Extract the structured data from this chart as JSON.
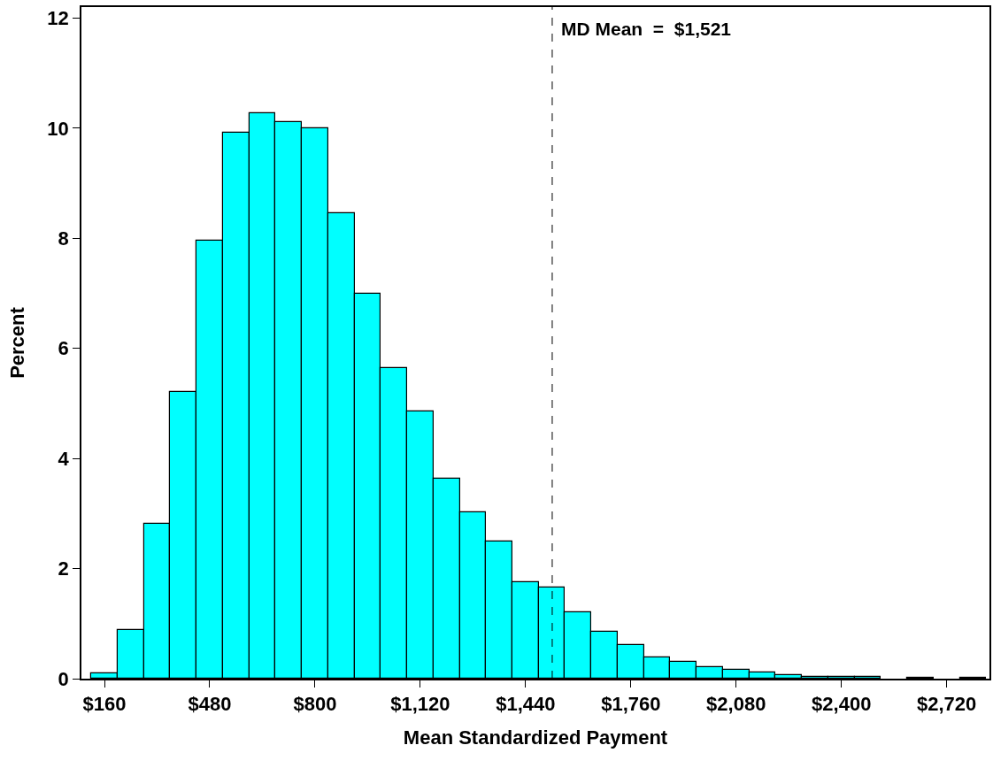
{
  "chart_data": {
    "type": "histogram",
    "xlabel": "Mean Standardized Payment",
    "ylabel": "Percent",
    "bins": [
      120,
      200,
      280,
      360,
      440,
      520,
      600,
      680,
      760,
      840,
      920,
      1000,
      1080,
      1160,
      1240,
      1320,
      1400,
      1480,
      1560,
      1640,
      1720,
      1800,
      1880,
      1960,
      2040,
      2120,
      2200,
      2280,
      2360,
      2440,
      2520,
      2600,
      2680,
      2760,
      2840
    ],
    "values": [
      0.1,
      0.88,
      2.81,
      5.21,
      7.95,
      9.91,
      10.27,
      10.11,
      10.0,
      8.45,
      6.99,
      5.64,
      4.85,
      3.63,
      3.02,
      2.49,
      1.75,
      1.66,
      1.21,
      0.86,
      0.61,
      0.39,
      0.3,
      0.21,
      0.16,
      0.12,
      0.06,
      0.03,
      0.03,
      0.03,
      0,
      0.01,
      0,
      0.01
    ],
    "color": "#00ffff",
    "xlim": [
      90,
      2850
    ],
    "xticks": [
      {
        "value": 160,
        "label": "$160"
      },
      {
        "value": 480,
        "label": "$480"
      },
      {
        "value": 800,
        "label": "$800"
      },
      {
        "value": 1120,
        "label": "$1,120"
      },
      {
        "value": 1440,
        "label": "$1,440"
      },
      {
        "value": 1760,
        "label": "$1,760"
      },
      {
        "value": 2080,
        "label": "$2,080"
      },
      {
        "value": 2400,
        "label": "$2,400"
      },
      {
        "value": 2720,
        "label": "$2,720"
      }
    ],
    "ylim": [
      0,
      12.2
    ],
    "yticks": [
      0,
      2,
      4,
      6,
      8,
      10,
      12
    ],
    "grid": false,
    "ref_lines": [
      {
        "axis": "x",
        "value": 1521,
        "label": "MD Mean  =  $1,521",
        "line_style": "dashed"
      }
    ]
  }
}
